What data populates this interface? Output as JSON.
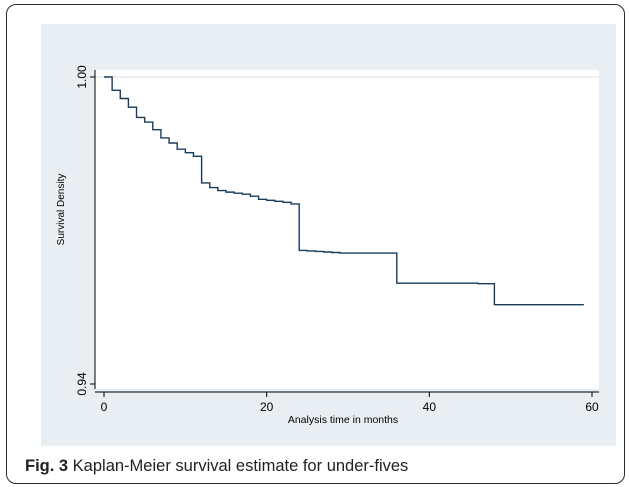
{
  "caption": {
    "label": "Fig. 3",
    "text": " Kaplan-Meier survival estimate for under-fives"
  },
  "colors": {
    "panel_background": "#e9eef3",
    "plot_background": "#ffffff",
    "line": "#1a3a5c"
  },
  "chart_data": {
    "type": "line",
    "title": "",
    "xlabel": "Analysis time in months",
    "ylabel": "Survival Density",
    "xlim": [
      0,
      60
    ],
    "ylim": [
      0.94,
      1.0
    ],
    "x_ticks": [
      {
        "value": 0,
        "label": "0"
      },
      {
        "value": 20,
        "label": "20"
      },
      {
        "value": 40,
        "label": "40"
      },
      {
        "value": 60,
        "label": "60"
      }
    ],
    "y_ticks": [
      {
        "value": 0.94,
        "label": "0.94"
      },
      {
        "value": 1.0,
        "label": "1.00"
      }
    ],
    "grid": "horizontal line at 1.00",
    "legend": "none",
    "series": [
      {
        "step": "post",
        "x": [
          0,
          1,
          2,
          3,
          4,
          5,
          6,
          7,
          8,
          9,
          10,
          11,
          12,
          13,
          14,
          15,
          16,
          17,
          18,
          19,
          20,
          21,
          22,
          23,
          24,
          25,
          26,
          27,
          28,
          29,
          30,
          31,
          36,
          41,
          46,
          48,
          54,
          59
        ],
        "y": [
          1.0,
          0.9974,
          0.9958,
          0.9941,
          0.9921,
          0.9912,
          0.9897,
          0.9881,
          0.9871,
          0.9859,
          0.9852,
          0.9845,
          0.9793,
          0.9784,
          0.9778,
          0.9775,
          0.9773,
          0.9771,
          0.9767,
          0.9761,
          0.9759,
          0.9757,
          0.9755,
          0.9752,
          0.9661,
          0.966,
          0.9659,
          0.9658,
          0.9657,
          0.9656,
          0.9656,
          0.9656,
          0.9597,
          0.9597,
          0.9596,
          0.9555,
          0.9555,
          0.9555
        ]
      }
    ]
  }
}
